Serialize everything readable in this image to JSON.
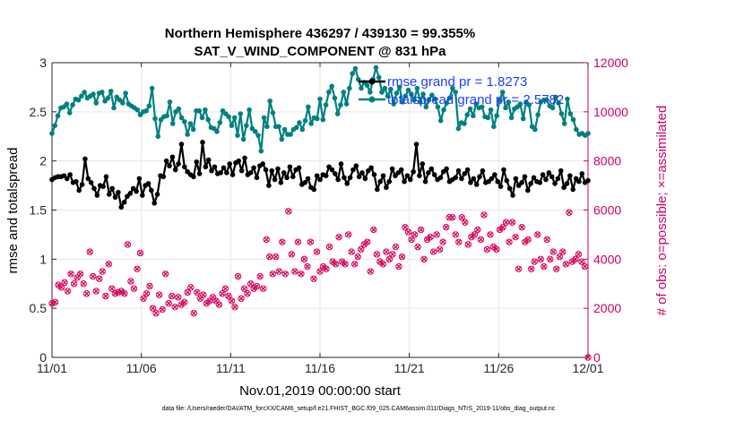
{
  "chart_data": {
    "type": "line",
    "title": "Northern Hemisphere 436297 / 439130 = 99.355%",
    "subtitle": "SAT_V_WIND_COMPONENT @ 831 hPa",
    "xlabel": "Nov.01,2019 00:00:00 start",
    "ylabel_left": "rmse and totalspread",
    "ylabel_right": "# of obs: o=possible; ×=assimilated",
    "footnote": "data file: /Users/raeder/DAI/ATM_forcXX/CAM6_setup/f.e21.FHIST_BGC.f09_025.CAM6assim.011/Diags_NTrS_2019-11/obs_diag_output.nc",
    "x_ticks": [
      "11/01",
      "11/06",
      "11/11",
      "11/16",
      "11/21",
      "11/26",
      "12/01"
    ],
    "x_range_days": [
      0,
      30
    ],
    "y_left_range": [
      0,
      3
    ],
    "y_left_ticks": [
      "0",
      "0.5",
      "1",
      "1.5",
      "2",
      "2.5",
      "3"
    ],
    "y_right_range": [
      0,
      12000
    ],
    "y_right_ticks": [
      "0",
      "2000",
      "4000",
      "6000",
      "8000",
      "10000",
      "12000"
    ],
    "colors": {
      "rmse": "#000000",
      "spread": "#008080",
      "obs": "#d6005b",
      "legend_text": "#1a40ff",
      "right_axis": "#cc0066"
    },
    "legend": {
      "placement": "top-right",
      "entries": [
        {
          "label": "rmse grand pr = 1.8273",
          "series": "rmse"
        },
        {
          "label": "totalspread grand pr = 2.5782",
          "series": "spread"
        }
      ]
    },
    "series": [
      {
        "name": "rmse",
        "axis": "left",
        "values": [
          1.81,
          1.83,
          1.84,
          1.84,
          1.85,
          1.82,
          1.86,
          1.78,
          1.79,
          1.7,
          1.76,
          2.02,
          1.82,
          1.78,
          1.72,
          1.65,
          1.75,
          1.74,
          1.84,
          1.66,
          1.72,
          1.63,
          1.68,
          1.53,
          1.58,
          1.64,
          1.67,
          1.72,
          1.69,
          1.82,
          1.65,
          1.75,
          1.77,
          1.7,
          1.57,
          1.66,
          1.85,
          1.84,
          2.0,
          1.95,
          2.04,
          1.91,
          1.97,
          2.17,
          1.94,
          1.89,
          1.86,
          1.84,
          1.99,
          1.87,
          2.19,
          1.94,
          2.01,
          1.9,
          1.94,
          1.87,
          1.88,
          1.93,
          1.88,
          1.97,
          1.86,
          1.98,
          2.0,
          1.9,
          2.03,
          1.86,
          1.88,
          1.93,
          1.83,
          1.95,
          1.97,
          1.91,
          1.75,
          1.9,
          1.81,
          1.92,
          1.78,
          1.88,
          1.83,
          1.94,
          1.84,
          1.91,
          1.93,
          1.76,
          1.78,
          1.82,
          1.73,
          1.71,
          1.85,
          1.81,
          1.86,
          1.85,
          1.94,
          1.91,
          1.87,
          1.81,
          1.97,
          1.83,
          1.77,
          1.83,
          1.91,
          1.95,
          1.84,
          1.88,
          1.82,
          1.9,
          1.93,
          1.86,
          1.71,
          1.79,
          1.85,
          1.73,
          1.79,
          1.92,
          1.85,
          1.88,
          1.91,
          1.79,
          1.85,
          1.81,
          1.89,
          2.17,
          1.85,
          1.97,
          1.79,
          1.88,
          1.92,
          1.86,
          1.81,
          1.83,
          1.89,
          1.92,
          1.79,
          1.81,
          1.83,
          1.9,
          1.82,
          1.87,
          1.91,
          1.78,
          1.82,
          1.76,
          1.84,
          1.9,
          1.78,
          1.79,
          1.82,
          1.86,
          1.79,
          1.74,
          1.91,
          1.8,
          1.72,
          1.65,
          1.82,
          1.75,
          1.78,
          1.84,
          1.7,
          1.77,
          1.83,
          1.79,
          1.78,
          1.86,
          1.81,
          1.88,
          1.84,
          1.77,
          1.82,
          1.9,
          1.73,
          1.77,
          1.85,
          1.71,
          1.82,
          1.79,
          1.87,
          1.78,
          1.8
        ]
      },
      {
        "name": "totalspread",
        "axis": "left",
        "values": [
          2.28,
          2.36,
          2.46,
          2.54,
          2.55,
          2.58,
          2.49,
          2.57,
          2.63,
          2.62,
          2.66,
          2.7,
          2.64,
          2.66,
          2.68,
          2.59,
          2.69,
          2.7,
          2.61,
          2.64,
          2.71,
          2.54,
          2.65,
          2.62,
          2.59,
          2.69,
          2.58,
          2.56,
          2.54,
          2.52,
          2.47,
          2.5,
          2.51,
          2.56,
          2.74,
          2.43,
          2.25,
          2.42,
          2.45,
          2.46,
          2.6,
          2.38,
          2.5,
          2.53,
          2.44,
          2.4,
          2.27,
          2.38,
          2.32,
          2.51,
          2.51,
          2.44,
          2.52,
          2.42,
          2.34,
          2.33,
          2.3,
          2.39,
          2.51,
          2.48,
          2.45,
          2.36,
          2.44,
          2.26,
          2.48,
          2.22,
          2.36,
          2.52,
          2.33,
          2.3,
          2.26,
          2.1,
          2.44,
          2.35,
          2.61,
          2.49,
          2.35,
          2.35,
          2.22,
          2.32,
          2.27,
          2.27,
          2.32,
          2.34,
          2.39,
          2.32,
          2.41,
          2.55,
          2.38,
          2.44,
          2.43,
          2.63,
          2.42,
          2.57,
          2.7,
          2.76,
          2.64,
          2.48,
          2.57,
          2.7,
          2.58,
          2.74,
          2.89,
          2.94,
          2.83,
          2.74,
          2.8,
          2.77,
          2.7,
          2.83,
          2.95,
          2.85,
          2.7,
          2.74,
          2.66,
          2.73,
          2.58,
          2.69,
          2.75,
          2.6,
          2.66,
          2.72,
          2.68,
          2.62,
          2.74,
          2.6,
          2.68,
          2.55,
          2.62,
          2.67,
          2.63,
          2.55,
          2.41,
          2.52,
          2.59,
          2.64,
          2.74,
          2.7,
          2.33,
          2.39,
          2.38,
          2.47,
          2.53,
          2.46,
          2.58,
          2.54,
          2.55,
          2.45,
          2.44,
          2.52,
          2.35,
          2.46,
          2.62,
          2.7,
          2.54,
          2.6,
          2.44,
          2.53,
          2.55,
          2.58,
          2.43,
          2.6,
          2.57,
          2.35,
          2.32,
          2.47,
          2.6,
          2.62,
          2.62,
          2.56,
          2.54,
          2.65,
          2.59,
          2.48,
          2.38,
          2.63,
          2.48,
          2.42,
          2.32,
          2.27,
          2.28,
          2.26,
          2.28
        ]
      },
      {
        "name": "obs possible/assimilated",
        "axis": "right",
        "type": "scatter",
        "values": [
          2200,
          2250,
          2950,
          2850,
          3050,
          2700,
          3400,
          3000,
          3250,
          3400,
          3000,
          2600,
          4300,
          3300,
          2700,
          3200,
          3500,
          2500,
          3800,
          2800,
          2600,
          2650,
          2700,
          2600,
          4600,
          3100,
          2800,
          3600,
          4250,
          2400,
          2600,
          2900,
          2000,
          1800,
          2550,
          1950,
          3400,
          2200,
          2500,
          2050,
          2450,
          2150,
          2250,
          2650,
          2850,
          1800,
          2650,
          2400,
          2550,
          2200,
          2300,
          2450,
          2300,
          2150,
          2600,
          2800,
          2500,
          2300,
          2050,
          3300,
          2400,
          2800,
          2600,
          3000,
          2800,
          2900,
          3300,
          2800,
          4800,
          4100,
          3400,
          4100,
          3500,
          4700,
          3400,
          5950,
          4200,
          3500,
          4700,
          3400,
          4000,
          3700,
          4700,
          3200,
          4300,
          3500,
          3700,
          3600,
          4500,
          3900,
          3800,
          4900,
          3900,
          3800,
          5000,
          4300,
          3800,
          4100,
          4400,
          4600,
          4700,
          3500,
          5200,
          4200,
          3900,
          3800,
          4300,
          4000,
          4200,
          4500,
          3700,
          4100,
          5300,
          5100,
          4800,
          5000,
          4500,
          5200,
          4000,
          4800,
          4900,
          4300,
          5000,
          4400,
          4700,
          5300,
          5700,
          5700,
          5000,
          4700,
          5700,
          5500,
          4600,
          4900,
          5000,
          5200,
          4800,
          5800,
          4400,
          5000,
          4500,
          4400,
          5200,
          5300,
          5500,
          4700,
          5500,
          4900,
          3600,
          5300,
          4700,
          4800,
          3600,
          3900,
          5000,
          4000,
          3700,
          4800,
          4000,
          4300,
          3600,
          4100,
          4300,
          3800,
          5900,
          3900,
          4000,
          4200,
          3900,
          3700,
          0
        ]
      }
    ]
  }
}
